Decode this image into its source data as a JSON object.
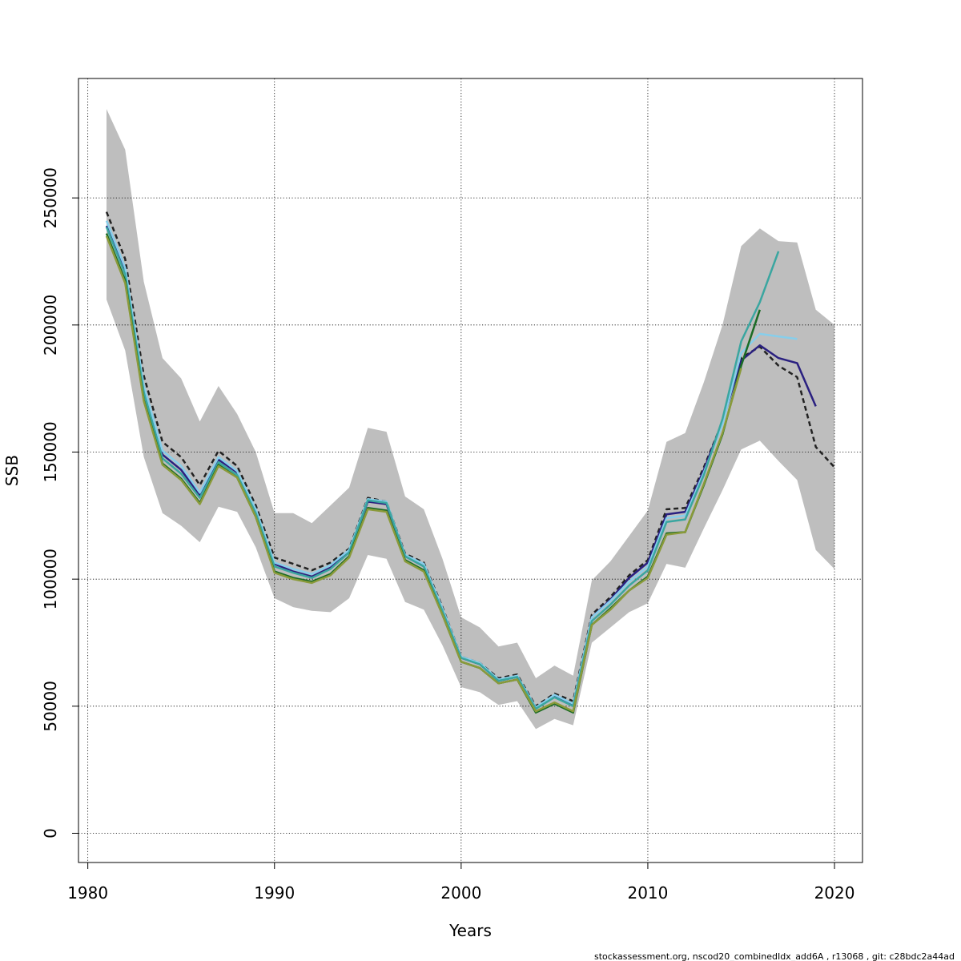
{
  "chart_data": {
    "type": "line",
    "title": "",
    "xlabel": "Years",
    "ylabel": "SSB",
    "xlim": [
      1979.5,
      2021.5
    ],
    "ylim": [
      -11500,
      297000
    ],
    "xticks": [
      1980,
      1990,
      2000,
      2010,
      2020
    ],
    "yticks": [
      0,
      50000,
      100000,
      150000,
      200000,
      250000
    ],
    "grid": true,
    "legend": "none",
    "footer": "stockassessment.org, nscod20_combinedIdx_add6A  , r13068 , git: c28bdc2a44ad",
    "band": {
      "color": "#bebebe",
      "x": [
        1981,
        1982,
        1983,
        1984,
        1985,
        1986,
        1987,
        1988,
        1989,
        1990,
        1991,
        1992,
        1993,
        1994,
        1995,
        1996,
        1997,
        1998,
        1999,
        2000,
        2001,
        2002,
        2003,
        2004,
        2005,
        2006,
        2007,
        2008,
        2009,
        2010,
        2011,
        2012,
        2013,
        2014,
        2015,
        2016,
        2017,
        2018,
        2019,
        2020
      ],
      "upper": [
        285000,
        269000,
        217000,
        187000,
        179000,
        162000,
        176000,
        165000,
        150000,
        126000,
        126000,
        122000,
        129000,
        136000,
        159500,
        158000,
        132500,
        127500,
        108000,
        85000,
        81000,
        73500,
        75000,
        61000,
        66000,
        62000,
        99500,
        107000,
        117000,
        127000,
        154000,
        157500,
        177500,
        200000,
        231000,
        238000,
        233000,
        232500,
        206000,
        200000
      ],
      "lower": [
        210000,
        190000,
        148000,
        126000,
        121000,
        114500,
        128500,
        126500,
        112500,
        92500,
        89000,
        87500,
        87000,
        92500,
        109500,
        108000,
        91000,
        88000,
        74000,
        57500,
        55500,
        50500,
        52000,
        41000,
        45000,
        42500,
        75000,
        81000,
        87000,
        90500,
        106000,
        104500,
        120000,
        135000,
        151000,
        154500,
        146500,
        139000,
        111500,
        104000
      ]
    },
    "series": [
      {
        "name": "",
        "color": "#222222",
        "dash": "dashed",
        "x": [
          1981,
          1982,
          1983,
          1984,
          1985,
          1986,
          1987,
          1988,
          1989,
          1990,
          1991,
          1992,
          1993,
          1994,
          1995,
          1996,
          1997,
          1998,
          1999,
          2000,
          2001,
          2002,
          2003,
          2004,
          2005,
          2006,
          2007,
          2008,
          2009,
          2010,
          2011,
          2012,
          2013,
          2014,
          2015,
          2016,
          2017,
          2018,
          2019,
          2020
        ],
        "values": [
          244500,
          226000,
          180000,
          154000,
          148000,
          137000,
          150500,
          144500,
          129000,
          108500,
          106000,
          103500,
          106500,
          112000,
          132000,
          130500,
          110000,
          106500,
          89000,
          69500,
          67000,
          61000,
          62500,
          50000,
          55000,
          52000,
          86000,
          93000,
          101500,
          107500,
          127500,
          128000,
          144000,
          162000,
          187000,
          191500,
          184000,
          179500,
          152000,
          144000
        ]
      },
      {
        "name": "",
        "color": "#2a2080",
        "dash": "solid",
        "x": [
          1981,
          1982,
          1983,
          1984,
          1985,
          1986,
          1987,
          1988,
          1989,
          1990,
          1991,
          1992,
          1993,
          1994,
          1995,
          1996,
          1997,
          1998,
          1999,
          2000,
          2001,
          2002,
          2003,
          2004,
          2005,
          2006,
          2007,
          2008,
          2009,
          2010,
          2011,
          2012,
          2013,
          2014,
          2015,
          2016,
          2017,
          2018,
          2019
        ],
        "values": [
          239000,
          221000,
          174000,
          149000,
          143000,
          133000,
          147000,
          142000,
          127000,
          106000,
          103000,
          101000,
          104500,
          111000,
          130500,
          129500,
          109000,
          105000,
          88000,
          69000,
          66500,
          60000,
          61500,
          49500,
          54000,
          50500,
          85000,
          92000,
          100500,
          106500,
          125500,
          126500,
          143000,
          162000,
          186000,
          192000,
          187000,
          185000,
          168000
        ]
      },
      {
        "name": "",
        "color": "#87ceeb",
        "dash": "solid",
        "x": [
          1981,
          1982,
          1983,
          1984,
          1985,
          1986,
          1987,
          1988,
          1989,
          1990,
          1991,
          1992,
          1993,
          1994,
          1995,
          1996,
          1997,
          1998,
          1999,
          2000,
          2001,
          2002,
          2003,
          2004,
          2005,
          2006,
          2007,
          2008,
          2009,
          2010,
          2011,
          2012,
          2013,
          2014,
          2015,
          2016,
          2017,
          2018
        ],
        "values": [
          241000,
          222500,
          176000,
          150500,
          144500,
          134000,
          148000,
          142500,
          127500,
          106500,
          104000,
          102000,
          105500,
          111500,
          131500,
          130500,
          109500,
          106000,
          88500,
          69500,
          67000,
          60500,
          62000,
          49500,
          54500,
          51000,
          85000,
          91500,
          99000,
          105000,
          124000,
          125000,
          142000,
          161000,
          189000,
          196500,
          195500,
          194500
        ]
      },
      {
        "name": "",
        "color": "#3aa6a0",
        "dash": "solid",
        "x": [
          1981,
          1982,
          1983,
          1984,
          1985,
          1986,
          1987,
          1988,
          1989,
          1990,
          1991,
          1992,
          1993,
          1994,
          1995,
          1996,
          1997,
          1998,
          1999,
          2000,
          2001,
          2002,
          2003,
          2004,
          2005,
          2006,
          2007,
          2008,
          2009,
          2010,
          2011,
          2012,
          2013,
          2014,
          2015,
          2016,
          2017
        ],
        "values": [
          238500,
          220000,
          173500,
          147500,
          141500,
          132000,
          146000,
          141000,
          126000,
          105000,
          102500,
          100500,
          104000,
          110500,
          131000,
          130000,
          109000,
          105000,
          87500,
          69000,
          66500,
          60000,
          61500,
          49000,
          53500,
          50000,
          83500,
          90000,
          97500,
          103500,
          122500,
          123500,
          141000,
          163000,
          193500,
          209000,
          229000
        ]
      },
      {
        "name": "",
        "color": "#1a6b24",
        "dash": "solid",
        "x": [
          1981,
          1982,
          1983,
          1984,
          1985,
          1986,
          1987,
          1988,
          1989,
          1990,
          1991,
          1992,
          1993,
          1994,
          1995,
          1996,
          1997,
          1998,
          1999,
          2000,
          2001,
          2002,
          2003,
          2004,
          2005,
          2006,
          2007,
          2008,
          2009,
          2010,
          2011,
          2012,
          2013,
          2014,
          2015,
          2016
        ],
        "values": [
          236000,
          217500,
          170500,
          145500,
          139500,
          130000,
          145000,
          140000,
          124500,
          103000,
          100500,
          99000,
          102000,
          109000,
          128000,
          127000,
          107500,
          103500,
          86000,
          67500,
          65000,
          59000,
          60500,
          47500,
          51000,
          47500,
          82000,
          88500,
          95500,
          101000,
          118000,
          118500,
          137000,
          157000,
          184000,
          206000
        ]
      },
      {
        "name": "",
        "color": "#8a9a3a",
        "dash": "solid",
        "x": [
          1981,
          1982,
          1983,
          1984,
          1985,
          1986,
          1987,
          1988,
          1989,
          1990,
          1991,
          1992,
          1993,
          1994,
          1995,
          1996,
          1997,
          1998,
          1999,
          2000,
          2001,
          2002,
          2003,
          2004,
          2005,
          2006,
          2007,
          2008,
          2009,
          2010,
          2011,
          2012,
          2013,
          2014,
          2015
        ],
        "values": [
          235000,
          216500,
          170000,
          145000,
          139000,
          129500,
          144500,
          140000,
          124500,
          102500,
          100000,
          98500,
          101500,
          108500,
          127500,
          126500,
          107000,
          103000,
          86000,
          67500,
          65000,
          59000,
          60500,
          48000,
          51500,
          48000,
          82000,
          88000,
          95500,
          100500,
          117500,
          118500,
          137500,
          157500,
          183000
        ]
      }
    ]
  }
}
